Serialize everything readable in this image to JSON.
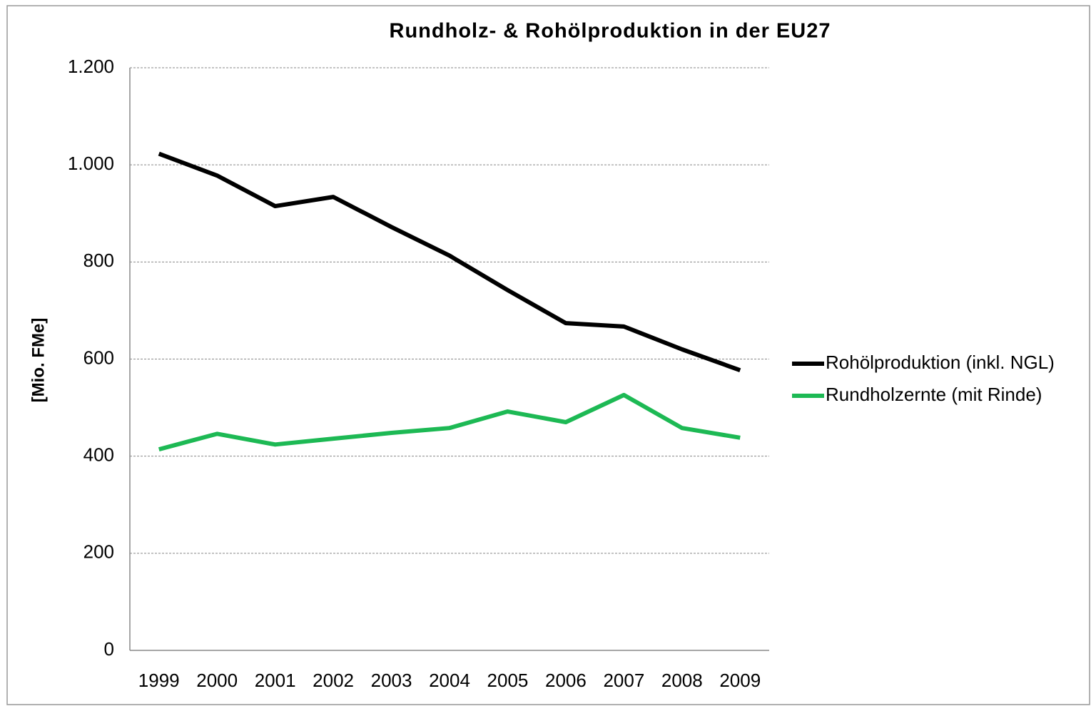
{
  "chart_data": {
    "type": "line",
    "title": "Rundholz- & Rohölproduktion in der EU27",
    "y_label": "[Mio. FMe]",
    "categories": [
      "1999",
      "2000",
      "2001",
      "2002",
      "2003",
      "2004",
      "2005",
      "2006",
      "2007",
      "2008",
      "2009"
    ],
    "series": [
      {
        "name": "Rohölproduktion (inkl. NGL)",
        "color": "#000000",
        "values": [
          1023,
          978,
          915,
          934,
          872,
          813,
          742,
          674,
          667,
          620,
          577
        ]
      },
      {
        "name": "Rundholzernte (mit Rinde)",
        "color": "#1db954",
        "values": [
          414,
          446,
          424,
          436,
          448,
          458,
          492,
          470,
          526,
          458,
          438
        ]
      }
    ],
    "ylim": [
      0,
      1200
    ],
    "yticks": [
      0,
      200,
      400,
      600,
      800,
      {
        "value": 1000,
        "label": "1.000"
      },
      {
        "value": 1200,
        "label": "1.200"
      }
    ],
    "grid": true,
    "legend": "right"
  }
}
